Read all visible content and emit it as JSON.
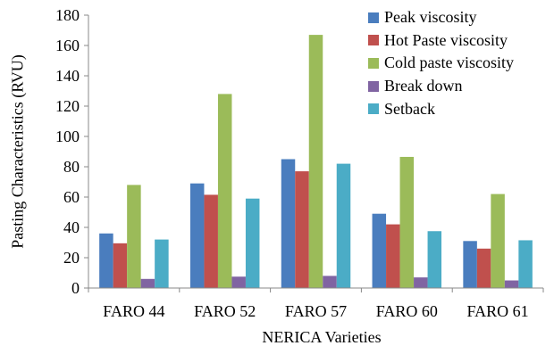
{
  "chart_data": {
    "type": "bar",
    "title": "",
    "xlabel": "NERICA Varieties",
    "ylabel": "Pasting Characteristics (RVU)",
    "ylim": [
      0,
      180
    ],
    "yticks": [
      0,
      20,
      40,
      60,
      80,
      100,
      120,
      140,
      160,
      180
    ],
    "grid": false,
    "legend_position": "top-right",
    "categories": [
      "FARO 44",
      "FARO 52",
      "FARO 57",
      "FARO 60",
      "FARO 61"
    ],
    "series": [
      {
        "name": "Peak viscosity",
        "color": "#4a7dbe",
        "values": [
          36,
          69,
          85,
          49,
          31
        ]
      },
      {
        "name": "Hot Paste viscosity",
        "color": "#c0504d",
        "values": [
          29.5,
          61.5,
          77,
          42,
          26
        ]
      },
      {
        "name": "Cold paste viscosity",
        "color": "#9bbb59",
        "values": [
          68,
          128,
          167,
          86.5,
          62
        ]
      },
      {
        "name": "Break down",
        "color": "#8064a2",
        "values": [
          6,
          7.5,
          8,
          7,
          5
        ]
      },
      {
        "name": "Setback",
        "color": "#4bacc6",
        "values": [
          32,
          59,
          82,
          37.5,
          31.5
        ]
      }
    ]
  }
}
